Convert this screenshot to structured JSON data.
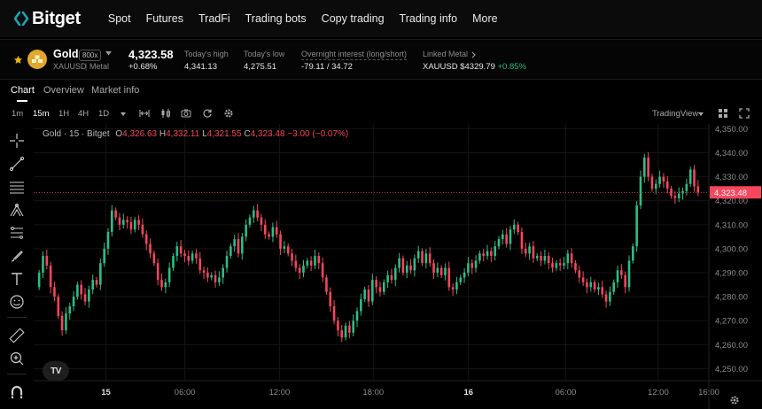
{
  "brand": {
    "name": "Bitget",
    "color": "#1da2b4"
  },
  "nav": [
    "Spot",
    "Futures",
    "TradFi",
    "Trading bots",
    "Copy trading",
    "Trading info",
    "More"
  ],
  "ticker": {
    "symbol": "Gold",
    "leverage": "800x",
    "pair": "XAUUSD",
    "category": "Metal",
    "price": "4,323.58",
    "change": "+0.68%",
    "high_label": "Today's high",
    "high": "4,341.13",
    "low_label": "Today's low",
    "low": "4,275.51",
    "interest_label": "Overnight interest (long/short)",
    "interest": "-79.11 / 34.72",
    "linked_label": "Linked Metal",
    "linked_value": "XAUUSD $4329.79",
    "linked_change": "+0.85%"
  },
  "tabs": [
    "Chart",
    "Overview",
    "Market info"
  ],
  "intervals": [
    "1m",
    "15m",
    "1H",
    "4H",
    "1D"
  ],
  "active_interval": "15m",
  "view_mode": "TradingView",
  "legend": {
    "title": "Gold · 15 · Bitget",
    "o_label": "O",
    "o": "4,326.63",
    "h_label": "H",
    "h": "4,332.11",
    "l_label": "L",
    "l": "4,321.55",
    "c_label": "C",
    "c": "4,323.48",
    "change": "−3.00 (−0.07%)"
  },
  "watermark": "TV",
  "chart_data": {
    "type": "candlestick",
    "y_ticks": [
      "4,350.00",
      "4,340.00",
      "4,330.00",
      "4,320.00",
      "4,310.00",
      "4,300.00",
      "4,290.00",
      "4,280.00",
      "4,270.00",
      "4,260.00",
      "4,250.00"
    ],
    "y_tick_values": [
      4350,
      4340,
      4330,
      4320,
      4310,
      4300,
      4290,
      4280,
      4270,
      4260,
      4250
    ],
    "x_ticks": [
      "15",
      "06:00",
      "12:00",
      "18:00",
      "16",
      "06:00",
      "12:00",
      "16:00"
    ],
    "bold_x_ticks": [
      "15",
      "16"
    ],
    "current_price_label": "4,323.48",
    "current_price": 4323.48,
    "ylim": [
      4245,
      4352
    ],
    "up_color": "#2ebd85",
    "down_color": "#f6465d",
    "closes": [
      4290,
      4297,
      4293,
      4284,
      4280,
      4272,
      4266,
      4273,
      4276,
      4280,
      4285,
      4281,
      4278,
      4283,
      4287,
      4285,
      4294,
      4300,
      4307,
      4316,
      4313,
      4310,
      4312,
      4311,
      4308,
      4312,
      4310,
      4306,
      4302,
      4298,
      4294,
      4287,
      4284,
      4286,
      4292,
      4297,
      4301,
      4298,
      4297,
      4295,
      4298,
      4296,
      4291,
      4290,
      4288,
      4289,
      4286,
      4288,
      4292,
      4297,
      4301,
      4304,
      4298,
      4305,
      4310,
      4313,
      4316,
      4313,
      4310,
      4306,
      4305,
      4309,
      4306,
      4300,
      4301,
      4298,
      4295,
      4292,
      4290,
      4293,
      4295,
      4293,
      4297,
      4294,
      4288,
      4282,
      4276,
      4270,
      4266,
      4263,
      4268,
      4265,
      4270,
      4274,
      4279,
      4283,
      4278,
      4287,
      4284,
      4282,
      4286,
      4289,
      4287,
      4292,
      4296,
      4290,
      4293,
      4291,
      4296,
      4299,
      4294,
      4298,
      4294,
      4290,
      4292,
      4289,
      4292,
      4284,
      4283,
      4286,
      4288,
      4290,
      4294,
      4292,
      4295,
      4298,
      4297,
      4299,
      4297,
      4301,
      4304,
      4306,
      4302,
      4308,
      4310,
      4307,
      4300,
      4298,
      4301,
      4296,
      4297,
      4295,
      4297,
      4294,
      4292,
      4294,
      4293,
      4294,
      4298,
      4294,
      4291,
      4288,
      4286,
      4284,
      4286,
      4283,
      4284,
      4281,
      4278,
      4282,
      4286,
      4291,
      4289,
      4284,
      4295,
      4301,
      4318,
      4330,
      4338,
      4330,
      4325,
      4327,
      4330,
      4328,
      4325,
      4322,
      4321,
      4323,
      4324,
      4327,
      4333,
      4326,
      4323.48
    ]
  }
}
